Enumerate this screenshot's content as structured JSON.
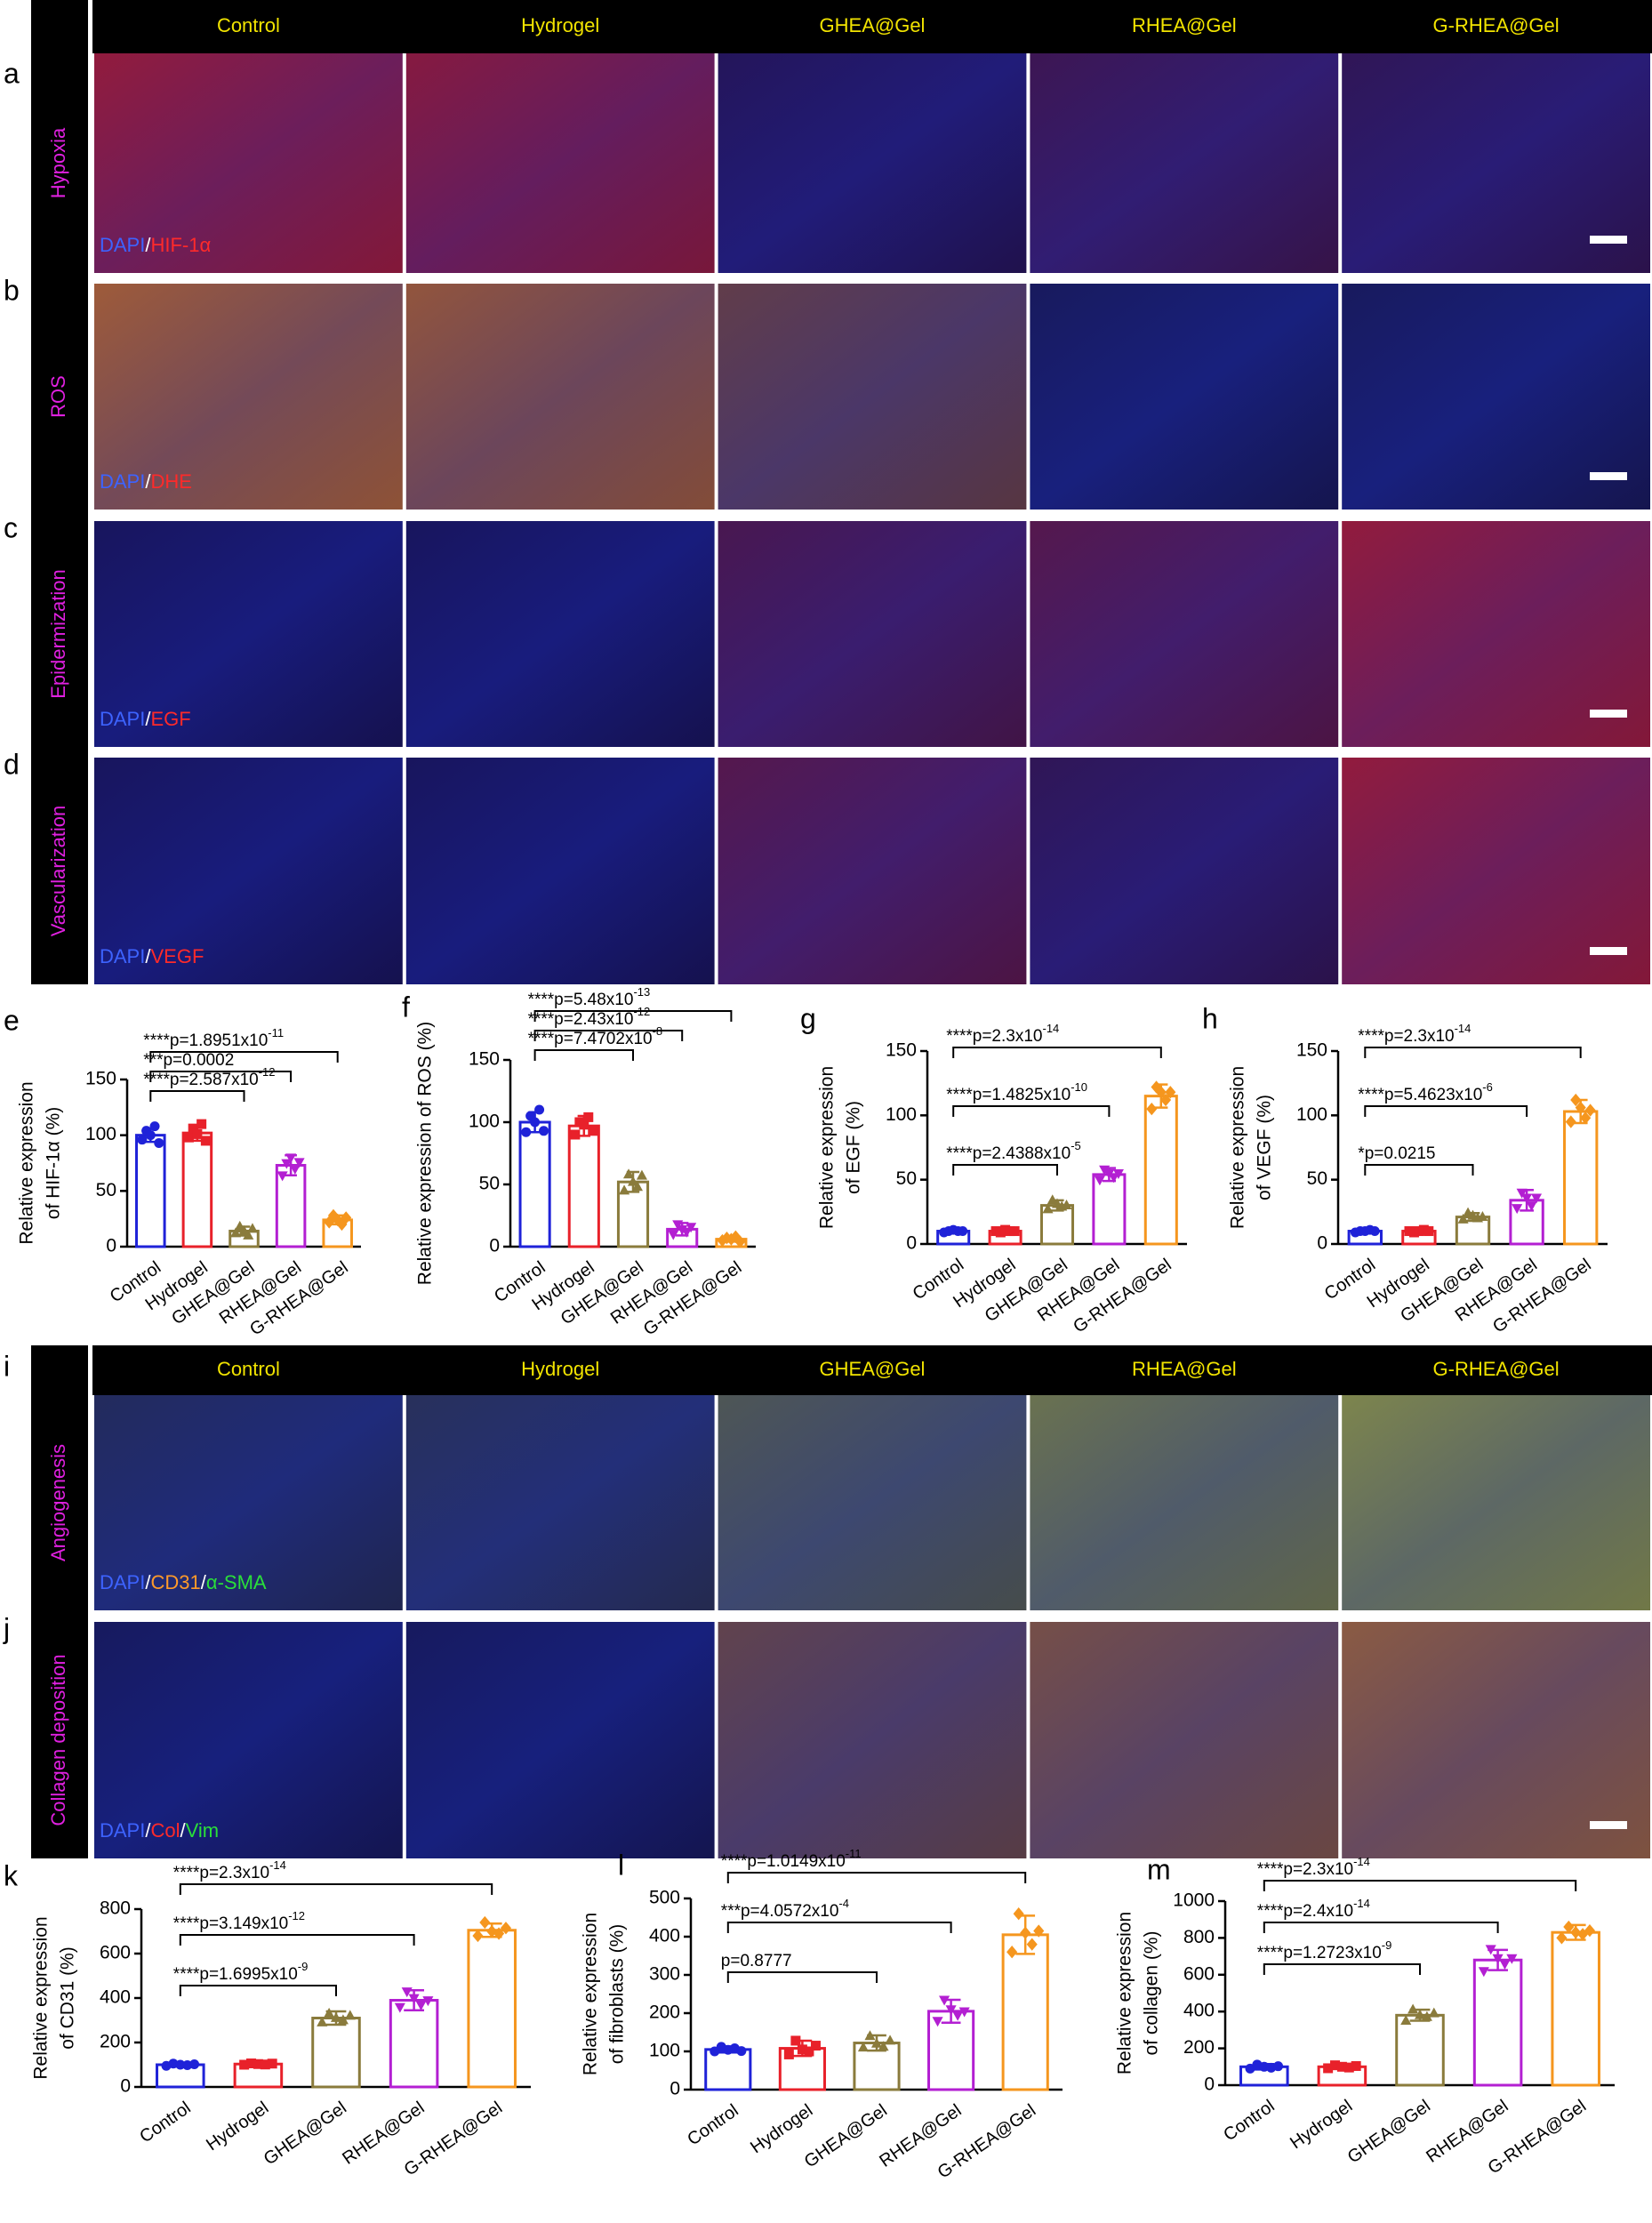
{
  "figure_top": {
    "letters": [
      "a",
      "b",
      "c",
      "d"
    ],
    "columns": [
      "Control",
      "Hydrogel",
      "GHEA@Gel",
      "RHEA@Gel",
      "G-RHEA@Gel"
    ],
    "rows": [
      {
        "label": "Hypoxia",
        "stain": [
          {
            "text": "DAPI",
            "color": "#3d63ff"
          },
          {
            "text": "/",
            "color": "#ffffff"
          },
          {
            "text": "HIF-1α",
            "color": "#ff2a2a"
          }
        ]
      },
      {
        "label": "ROS",
        "stain": [
          {
            "text": "DAPI",
            "color": "#3d63ff"
          },
          {
            "text": "/",
            "color": "#ffffff"
          },
          {
            "text": "DHE",
            "color": "#ff2a2a"
          }
        ]
      },
      {
        "label": "Epidermization",
        "stain": [
          {
            "text": "DAPI",
            "color": "#3d63ff"
          },
          {
            "text": "/",
            "color": "#ffffff"
          },
          {
            "text": "EGF",
            "color": "#ff2a2a"
          }
        ]
      },
      {
        "label": "Vascularization",
        "stain": [
          {
            "text": "DAPI",
            "color": "#3d63ff"
          },
          {
            "text": "/",
            "color": "#ffffff"
          },
          {
            "text": "VEGF",
            "color": "#ff2a2a"
          }
        ]
      }
    ]
  },
  "figure_bottom": {
    "letters": [
      "i",
      "j"
    ],
    "columns": [
      "Control",
      "Hydrogel",
      "GHEA@Gel",
      "RHEA@Gel",
      "G-RHEA@Gel"
    ],
    "rows": [
      {
        "label": "Angiogenesis",
        "stain": [
          {
            "text": "DAPI",
            "color": "#3d63ff"
          },
          {
            "text": "/",
            "color": "#ffffff"
          },
          {
            "text": "CD31",
            "color": "#ff9a2a"
          },
          {
            "text": "/",
            "color": "#ffffff"
          },
          {
            "text": "α-SMA",
            "color": "#2adf3a"
          }
        ]
      },
      {
        "label": "Collagen deposition",
        "stain": [
          {
            "text": "DAPI",
            "color": "#3d63ff"
          },
          {
            "text": "/",
            "color": "#ffffff"
          },
          {
            "text": "Col",
            "color": "#ff2a2a"
          },
          {
            "text": "/",
            "color": "#ffffff"
          },
          {
            "text": "Vim",
            "color": "#2adf3a"
          }
        ]
      }
    ]
  },
  "chart_data": [
    {
      "type": "bar",
      "letter": "e",
      "ylabel": [
        "Relative expression",
        "of HIF-1α (%)"
      ],
      "categories": [
        "Control",
        "Hydrogel",
        "GHEA@Gel",
        "RHEA@Gel",
        "G-RHEA@Gel"
      ],
      "colors": [
        "#1f22d8",
        "#e8212a",
        "#8a7b3c",
        "#b31fd2",
        "#f5961e"
      ],
      "values": [
        100,
        102,
        14,
        73,
        24
      ],
      "errors": [
        6,
        7,
        4,
        9,
        4
      ],
      "points": [
        [
          96,
          104,
          100,
          108,
          93
        ],
        [
          98,
          106,
          101,
          110,
          95
        ],
        [
          12,
          18,
          14,
          10,
          16
        ],
        [
          64,
          75,
          80,
          70,
          76
        ],
        [
          22,
          28,
          24,
          20,
          26
        ]
      ],
      "ylim": [
        0,
        150
      ],
      "yticks": [
        0,
        50,
        100,
        150
      ],
      "comparisons": [
        {
          "text": "****p=1.8951x10",
          "sup": "-11",
          "groups": [
            0,
            4
          ]
        },
        {
          "text": "***p=0.0002",
          "groups": [
            0,
            3
          ]
        },
        {
          "text": "****p=2.587x10",
          "sup": "-12",
          "groups": [
            0,
            2
          ]
        }
      ]
    },
    {
      "type": "bar",
      "letter": "f",
      "ylabel": [
        "Relative expression of ROS (%)"
      ],
      "categories": [
        "Control",
        "Hydrogel",
        "GHEA@Gel",
        "RHEA@Gel",
        "G-RHEA@Gel"
      ],
      "colors": [
        "#1f22d8",
        "#e8212a",
        "#8a7b3c",
        "#b31fd2",
        "#f5961e"
      ],
      "values": [
        100,
        97,
        52,
        14,
        6
      ],
      "errors": [
        8,
        8,
        8,
        5,
        2
      ],
      "points": [
        [
          92,
          105,
          100,
          110,
          93
        ],
        [
          90,
          100,
          98,
          104,
          93
        ],
        [
          45,
          58,
          52,
          48,
          57
        ],
        [
          10,
          18,
          14,
          12,
          16
        ],
        [
          5,
          7,
          6,
          8,
          4
        ]
      ],
      "ylim": [
        0,
        150
      ],
      "yticks": [
        0,
        50,
        100,
        150
      ],
      "comparisons": [
        {
          "text": "****p=5.48x10",
          "sup": "-13",
          "groups": [
            0,
            4
          ]
        },
        {
          "text": "****p=2.43x10",
          "sup": "-12",
          "groups": [
            0,
            3
          ]
        },
        {
          "text": "****p=7.4702x10",
          "sup": "-8",
          "groups": [
            0,
            2
          ]
        }
      ]
    },
    {
      "type": "bar",
      "letter": "g",
      "ylabel": [
        "Relative expression",
        "of EGF (%)"
      ],
      "categories": [
        "Control",
        "Hydrogel",
        "GHEA@Gel",
        "RHEA@Gel",
        "G-RHEA@Gel"
      ],
      "colors": [
        "#1f22d8",
        "#e8212a",
        "#8a7b3c",
        "#b31fd2",
        "#f5961e"
      ],
      "values": [
        10,
        10,
        30,
        54,
        115
      ],
      "errors": [
        1,
        1,
        4,
        5,
        9
      ],
      "points": [
        [
          9,
          10,
          11,
          10,
          10
        ],
        [
          10,
          9,
          11,
          10,
          10
        ],
        [
          27,
          34,
          31,
          29,
          30
        ],
        [
          50,
          58,
          55,
          52,
          55
        ],
        [
          105,
          122,
          118,
          112,
          118
        ]
      ],
      "ylim": [
        0,
        150
      ],
      "yticks": [
        0,
        50,
        100,
        150
      ],
      "comparisons": [
        {
          "text": "****p=2.3x10",
          "sup": "-14",
          "groups": [
            0,
            4
          ]
        },
        {
          "text": "****p=1.4825x10",
          "sup": "-10",
          "groups": [
            0,
            3
          ]
        },
        {
          "text": "****p=2.4388x10",
          "sup": "-5",
          "groups": [
            0,
            2
          ]
        }
      ]
    },
    {
      "type": "bar",
      "letter": "h",
      "ylabel": [
        "Relative expression",
        "of VEGF (%)"
      ],
      "categories": [
        "Control",
        "Hydrogel",
        "GHEA@Gel",
        "RHEA@Gel",
        "G-RHEA@Gel"
      ],
      "colors": [
        "#1f22d8",
        "#e8212a",
        "#8a7b3c",
        "#b31fd2",
        "#f5961e"
      ],
      "values": [
        10,
        10,
        21,
        34,
        103
      ],
      "errors": [
        1,
        1,
        3,
        8,
        9
      ],
      "points": [
        [
          9,
          10,
          10,
          11,
          10
        ],
        [
          10,
          9,
          10,
          11,
          10
        ],
        [
          19,
          24,
          22,
          20,
          21
        ],
        [
          28,
          40,
          36,
          30,
          36
        ],
        [
          95,
          112,
          106,
          98,
          104
        ]
      ],
      "ylim": [
        0,
        150
      ],
      "yticks": [
        0,
        50,
        100,
        150
      ],
      "comparisons": [
        {
          "text": "****p=2.3x10",
          "sup": "-14",
          "groups": [
            0,
            4
          ]
        },
        {
          "text": "****p=5.4623x10",
          "sup": "-6",
          "groups": [
            0,
            3
          ]
        },
        {
          "text": "*p=0.0215",
          "groups": [
            0,
            2
          ]
        }
      ]
    },
    {
      "type": "bar",
      "letter": "k",
      "ylabel": [
        "Relative expression",
        "of CD31 (%)"
      ],
      "categories": [
        "Control",
        "Hydrogel",
        "GHEA@Gel",
        "RHEA@Gel",
        "G-RHEA@Gel"
      ],
      "colors": [
        "#1f22d8",
        "#e8212a",
        "#8a7b3c",
        "#b31fd2",
        "#f5961e"
      ],
      "values": [
        100,
        103,
        310,
        390,
        705
      ],
      "errors": [
        8,
        8,
        30,
        45,
        30
      ],
      "points": [
        [
          95,
          105,
          100,
          98,
          102
        ],
        [
          100,
          106,
          103,
          101,
          105
        ],
        [
          290,
          330,
          310,
          300,
          320
        ],
        [
          360,
          430,
          400,
          370,
          390
        ],
        [
          680,
          740,
          700,
          690,
          715
        ]
      ],
      "ylim": [
        0,
        800
      ],
      "yticks": [
        0,
        200,
        400,
        600,
        800
      ],
      "comparisons": [
        {
          "text": "****p=2.3x10",
          "sup": "-14",
          "groups": [
            0,
            4
          ]
        },
        {
          "text": "****p=3.149x10",
          "sup": "-12",
          "groups": [
            0,
            3
          ]
        },
        {
          "text": "****p=1.6995x10",
          "sup": "-9",
          "groups": [
            0,
            2
          ]
        }
      ]
    },
    {
      "type": "bar",
      "letter": "l",
      "ylabel": [
        "Relative expression",
        "of fibroblasts (%)"
      ],
      "categories": [
        "Control",
        "Hydrogel",
        "GHEA@Gel",
        "RHEA@Gel",
        "G-RHEA@Gel"
      ],
      "colors": [
        "#1f22d8",
        "#e8212a",
        "#8a7b3c",
        "#b31fd2",
        "#f5961e"
      ],
      "values": [
        105,
        108,
        122,
        205,
        405
      ],
      "errors": [
        8,
        20,
        20,
        30,
        50
      ],
      "points": [
        [
          100,
          112,
          104,
          108,
          101
        ],
        [
          92,
          128,
          105,
          100,
          115
        ],
        [
          110,
          140,
          120,
          112,
          128
        ],
        [
          180,
          235,
          210,
          195,
          205
        ],
        [
          360,
          460,
          410,
          380,
          415
        ]
      ],
      "ylim": [
        0,
        500
      ],
      "yticks": [
        0,
        100,
        200,
        300,
        400,
        500
      ],
      "comparisons": [
        {
          "text": "****p=1.0149x10",
          "sup": "-11",
          "groups": [
            0,
            4
          ]
        },
        {
          "text": "***p=4.0572x10",
          "sup": "-4",
          "groups": [
            0,
            3
          ]
        },
        {
          "text": "p=0.8777",
          "groups": [
            0,
            2
          ]
        }
      ]
    },
    {
      "type": "bar",
      "letter": "m",
      "ylabel": [
        "Relative expression",
        "of collagen (%)"
      ],
      "categories": [
        "Control",
        "Hydrogel",
        "GHEA@Gel",
        "RHEA@Gel",
        "G-RHEA@Gel"
      ],
      "colors": [
        "#1f22d8",
        "#e8212a",
        "#8a7b3c",
        "#b31fd2",
        "#f5961e"
      ],
      "values": [
        100,
        100,
        380,
        680,
        830
      ],
      "errors": [
        15,
        12,
        30,
        55,
        40
      ],
      "points": [
        [
          90,
          112,
          100,
          95,
          103
        ],
        [
          92,
          108,
          100,
          96,
          104
        ],
        [
          350,
          410,
          380,
          370,
          390
        ],
        [
          620,
          740,
          690,
          660,
          690
        ],
        [
          800,
          860,
          830,
          820,
          840
        ]
      ],
      "ylim": [
        0,
        1000
      ],
      "yticks": [
        0,
        200,
        400,
        600,
        800,
        1000
      ],
      "comparisons": [
        {
          "text": "****p=2.3x10",
          "sup": "-14",
          "groups": [
            0,
            4
          ]
        },
        {
          "text": "****p=2.4x10",
          "sup": "-14",
          "groups": [
            0,
            3
          ]
        },
        {
          "text": "****p=1.2723x10",
          "sup": "-9",
          "groups": [
            0,
            2
          ]
        }
      ]
    }
  ]
}
